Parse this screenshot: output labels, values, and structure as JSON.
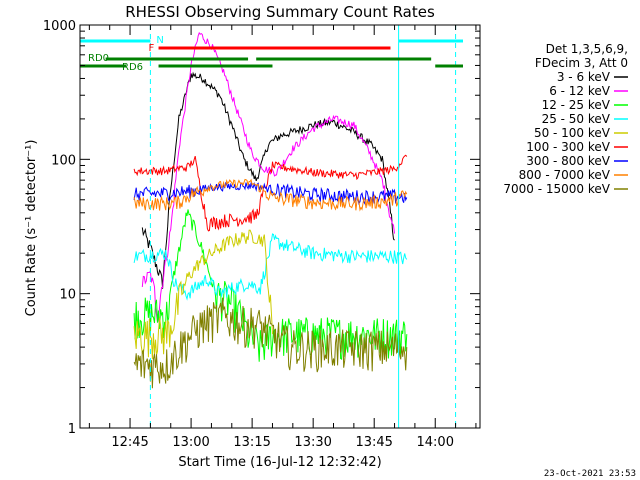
{
  "chart_data": {
    "type": "line",
    "title": "RHESSI Observing Summary Count Rates",
    "xlabel": "Start Time (16-Jul-12 12:32:42)",
    "ylabel": "Count Rate (s⁻¹ detector⁻¹)",
    "yscale": "log",
    "ylim": [
      1,
      1000
    ],
    "y_ticks": [
      1,
      10,
      100,
      1000
    ],
    "x_ticks": [
      "12:45",
      "13:00",
      "13:15",
      "13:30",
      "13:45",
      "14:00"
    ],
    "grid": false,
    "legend_position": "right",
    "legend_header": [
      "Det 1,3,5,6,9,",
      "FDecim 3, Att 0"
    ],
    "footer_date": "23-Oct-2021 23:53",
    "colors": {
      "3-6": "#000000",
      "6-12": "#ff00ff",
      "12-25": "#00ff00",
      "25-50": "#00ffff",
      "50-100": "#cccc00",
      "100-300": "#ff0000",
      "300-800": "#0000ff",
      "800-7000": "#ff8000",
      "7000-15000": "#808000",
      "flag_N": "#00ffff",
      "flag_F": "#ff0000",
      "flag_RD": "#008000"
    },
    "flags": [
      {
        "label": "N",
        "color": "#00ffff"
      },
      {
        "label": "F",
        "color": "#ff0000"
      },
      {
        "label": "RD0",
        "color": "#008000"
      },
      {
        "label": "RD6",
        "color": "#008000"
      }
    ],
    "series": [
      {
        "name": "3 - 6 keV",
        "color": "#000000",
        "points": [
          [
            "12:48",
            30
          ],
          [
            "12:50",
            22
          ],
          [
            "12:53",
            12
          ],
          [
            "12:55",
            60
          ],
          [
            "12:57",
            200
          ],
          [
            "13:00",
            430
          ],
          [
            "13:03",
            400
          ],
          [
            "13:07",
            300
          ],
          [
            "13:10",
            180
          ],
          [
            "13:13",
            100
          ],
          [
            "13:16",
            70
          ],
          [
            "13:19",
            130
          ],
          [
            "13:22",
            150
          ],
          [
            "13:25",
            160
          ],
          [
            "13:30",
            180
          ],
          [
            "13:35",
            190
          ],
          [
            "13:40",
            160
          ],
          [
            "13:44",
            130
          ],
          [
            "13:47",
            100
          ],
          [
            "13:50",
            25
          ]
        ]
      },
      {
        "name": "6 - 12 keV",
        "color": "#ff00ff",
        "points": [
          [
            "12:48",
            12
          ],
          [
            "12:50",
            14
          ],
          [
            "12:52",
            8
          ],
          [
            "12:55",
            30
          ],
          [
            "12:57",
            120
          ],
          [
            "13:00",
            500
          ],
          [
            "13:02",
            870
          ],
          [
            "13:05",
            700
          ],
          [
            "13:08",
            450
          ],
          [
            "13:12",
            200
          ],
          [
            "13:15",
            110
          ],
          [
            "13:18",
            85
          ],
          [
            "13:21",
            80
          ],
          [
            "13:25",
            120
          ],
          [
            "13:30",
            170
          ],
          [
            "13:35",
            200
          ],
          [
            "13:40",
            180
          ],
          [
            "13:44",
            110
          ],
          [
            "13:47",
            70
          ],
          [
            "13:50",
            28
          ]
        ]
      },
      {
        "name": "12 - 25 keV",
        "color": "#00ff00",
        "points": [
          [
            "12:46",
            7
          ],
          [
            "12:54",
            7
          ],
          [
            "12:56",
            15
          ],
          [
            "12:59",
            40
          ],
          [
            "13:01",
            30
          ],
          [
            "13:03",
            20
          ],
          [
            "13:06",
            10
          ],
          [
            "13:09",
            9
          ],
          [
            "13:12",
            7
          ],
          [
            "13:14",
            5
          ],
          [
            "13:17",
            4
          ],
          [
            "13:20",
            5
          ],
          [
            "13:30",
            5
          ],
          [
            "13:40",
            5
          ],
          [
            "13:50",
            5
          ],
          [
            "13:53",
            5
          ]
        ]
      },
      {
        "name": "25 - 50 keV",
        "color": "#00ffff",
        "points": [
          [
            "12:46",
            19
          ],
          [
            "12:54",
            20
          ],
          [
            "12:56",
            12
          ],
          [
            "12:59",
            10
          ],
          [
            "13:01",
            11
          ],
          [
            "13:04",
            13
          ],
          [
            "13:07",
            10
          ],
          [
            "13:10",
            11
          ],
          [
            "13:14",
            12
          ],
          [
            "13:17",
            11
          ],
          [
            "13:20",
            25
          ],
          [
            "13:25",
            22
          ],
          [
            "13:30",
            20
          ],
          [
            "13:40",
            19
          ],
          [
            "13:50",
            19
          ],
          [
            "13:53",
            18
          ]
        ]
      },
      {
        "name": "50 - 100 keV",
        "color": "#cccc00",
        "points": [
          [
            "12:46",
            5
          ],
          [
            "12:54",
            5
          ],
          [
            "12:56",
            7
          ],
          [
            "12:59",
            13
          ],
          [
            "13:02",
            17
          ],
          [
            "13:06",
            21
          ],
          [
            "13:09",
            24
          ],
          [
            "13:12",
            26
          ],
          [
            "13:15",
            27
          ],
          [
            "13:18",
            25
          ],
          [
            "13:20",
            5
          ]
        ]
      },
      {
        "name": "100 - 300 keV",
        "color": "#ff0000",
        "points": [
          [
            "12:46",
            82
          ],
          [
            "12:54",
            82
          ],
          [
            "12:56",
            85
          ],
          [
            "12:59",
            87
          ],
          [
            "13:01",
            100
          ],
          [
            "13:04",
            33
          ],
          [
            "13:08",
            35
          ],
          [
            "13:12",
            36
          ],
          [
            "13:16",
            38
          ],
          [
            "13:20",
            90
          ],
          [
            "13:25",
            85
          ],
          [
            "13:30",
            80
          ],
          [
            "13:35",
            78
          ],
          [
            "13:40",
            76
          ],
          [
            "13:45",
            80
          ],
          [
            "13:50",
            85
          ],
          [
            "13:53",
            105
          ]
        ]
      },
      {
        "name": "300 - 800 keV",
        "color": "#0000ff",
        "points": [
          [
            "12:46",
            55
          ],
          [
            "12:54",
            56
          ],
          [
            "12:57",
            57
          ],
          [
            "13:00",
            58
          ],
          [
            "13:05",
            62
          ],
          [
            "13:10",
            63
          ],
          [
            "13:15",
            64
          ],
          [
            "13:20",
            60
          ],
          [
            "13:25",
            57
          ],
          [
            "13:30",
            55
          ],
          [
            "13:35",
            54
          ],
          [
            "13:40",
            53
          ],
          [
            "13:45",
            53
          ],
          [
            "13:50",
            53
          ],
          [
            "13:53",
            52
          ]
        ]
      },
      {
        "name": "800 - 7000 keV",
        "color": "#ff8000",
        "points": [
          [
            "12:46",
            47
          ],
          [
            "12:54",
            47
          ],
          [
            "12:57",
            48
          ],
          [
            "13:00",
            55
          ],
          [
            "13:05",
            63
          ],
          [
            "13:10",
            66
          ],
          [
            "13:15",
            67
          ],
          [
            "13:20",
            52
          ],
          [
            "13:25",
            50
          ],
          [
            "13:30",
            48
          ],
          [
            "13:35",
            47
          ],
          [
            "13:40",
            47
          ],
          [
            "13:45",
            48
          ],
          [
            "13:50",
            50
          ],
          [
            "13:53",
            55
          ]
        ]
      },
      {
        "name": "7000 - 15000 keV",
        "color": "#808000",
        "points": [
          [
            "12:46",
            3
          ],
          [
            "12:54",
            3
          ],
          [
            "12:57",
            4
          ],
          [
            "13:00",
            5
          ],
          [
            "13:03",
            6
          ],
          [
            "13:08",
            7
          ],
          [
            "13:12",
            6
          ],
          [
            "13:16",
            6
          ],
          [
            "13:20",
            5
          ],
          [
            "13:25",
            4
          ],
          [
            "13:30",
            4
          ],
          [
            "13:40",
            4
          ],
          [
            "13:50",
            4
          ],
          [
            "13:53",
            4
          ]
        ]
      }
    ]
  }
}
